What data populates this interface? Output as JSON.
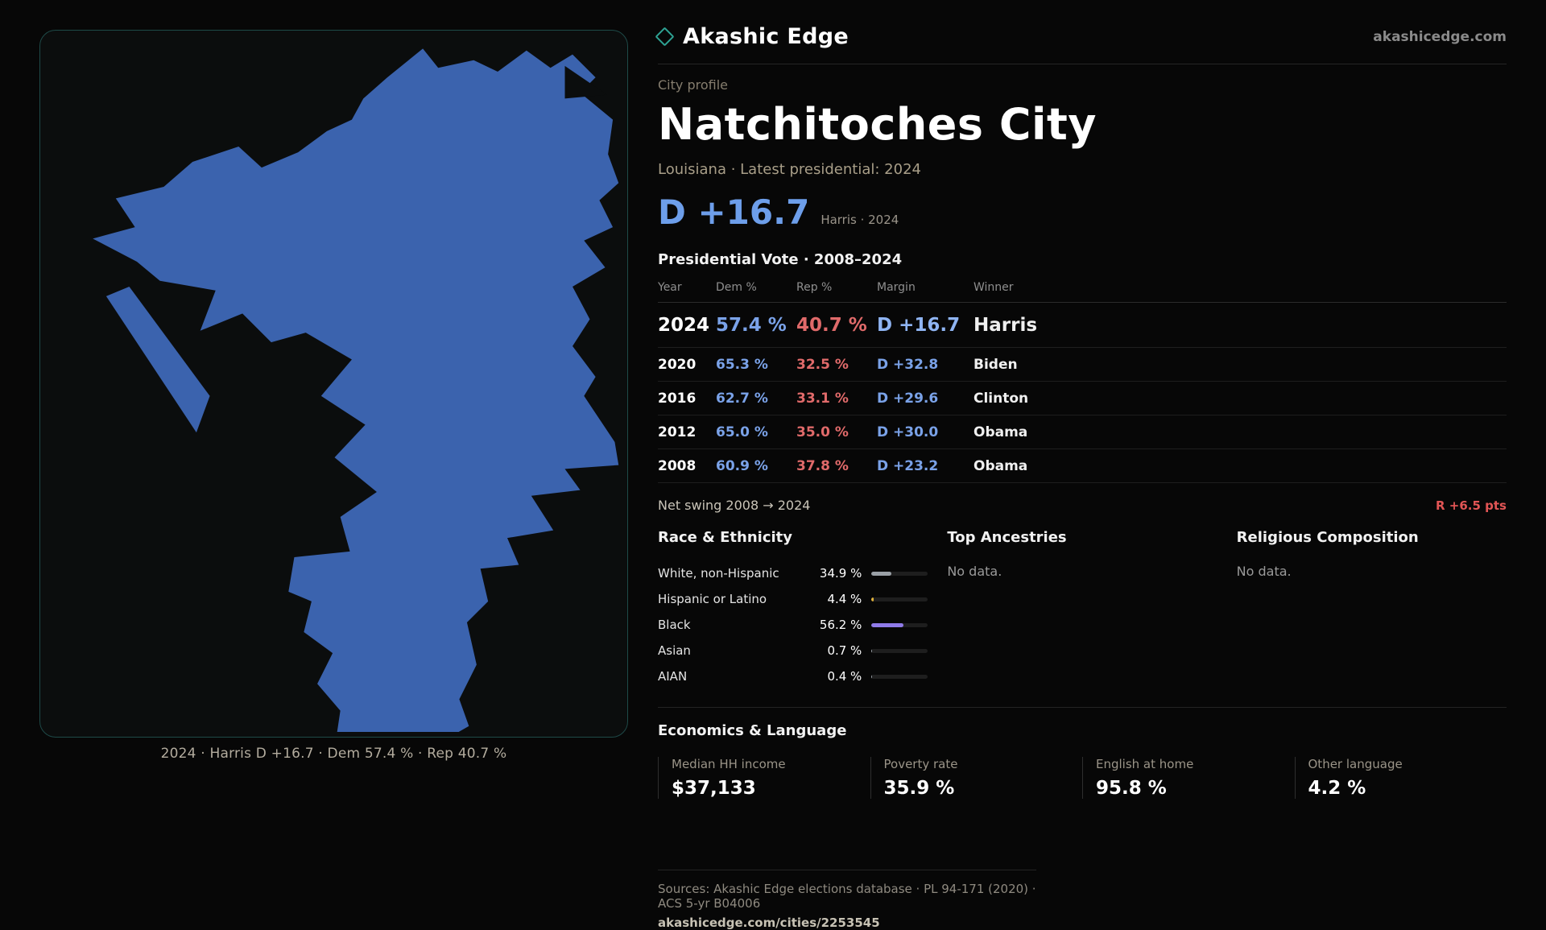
{
  "brand": {
    "name": "Akashic Edge",
    "domain": "akashicedge.com"
  },
  "map": {
    "caption": "2024 · Harris D +16.7 · Dem 57.4 % · Rep 40.7 %",
    "fill": "#3b63ae"
  },
  "profile": {
    "eyebrow": "City profile",
    "title": "Natchitoches City",
    "subtitle": "Louisiana · Latest presidential: 2024",
    "headline_margin": "D +16.7",
    "headline_note": "Harris · 2024"
  },
  "table": {
    "title": "Presidential Vote · 2008–2024",
    "headers": [
      "Year",
      "Dem %",
      "Rep %",
      "Margin",
      "Winner"
    ],
    "rows": [
      {
        "year": "2024",
        "dem": "57.4 %",
        "rep": "40.7 %",
        "margin": "D +16.7",
        "winner": "Harris"
      },
      {
        "year": "2020",
        "dem": "65.3 %",
        "rep": "32.5 %",
        "margin": "D +32.8",
        "winner": "Biden"
      },
      {
        "year": "2016",
        "dem": "62.7 %",
        "rep": "33.1 %",
        "margin": "D +29.6",
        "winner": "Clinton"
      },
      {
        "year": "2012",
        "dem": "65.0 %",
        "rep": "35.0 %",
        "margin": "D +30.0",
        "winner": "Obama"
      },
      {
        "year": "2008",
        "dem": "60.9 %",
        "rep": "37.8 %",
        "margin": "D +23.2",
        "winner": "Obama"
      }
    ],
    "net_swing_label": "Net swing 2008 → 2024",
    "net_swing_value": "R +6.5 pts"
  },
  "demographics": {
    "race_title": "Race & Ethnicity",
    "ancestries_title": "Top Ancestries",
    "ancestries_empty": "No data.",
    "religion_title": "Religious Composition",
    "religion_empty": "No data.",
    "race_items": [
      {
        "label": "White, non-Hispanic",
        "value": "34.9 %",
        "pct": 34.9,
        "color": "#9aa0a6"
      },
      {
        "label": "Hispanic or Latino",
        "value": "4.4 %",
        "pct": 4.4,
        "color": "#e0b23c"
      },
      {
        "label": "Black",
        "value": "56.2 %",
        "pct": 56.2,
        "color": "#8f7ae8"
      },
      {
        "label": "Asian",
        "value": "0.7 %",
        "pct": 0.7,
        "color": "#9aa0a6"
      },
      {
        "label": "AIAN",
        "value": "0.4 %",
        "pct": 0.4,
        "color": "#9aa0a6"
      }
    ]
  },
  "economics": {
    "title": "Economics & Language",
    "stats": [
      {
        "label": "Median HH income",
        "value": "$37,133"
      },
      {
        "label": "Poverty rate",
        "value": "35.9 %"
      },
      {
        "label": "English at home",
        "value": "95.8 %"
      },
      {
        "label": "Other language",
        "value": "4.2 %"
      }
    ]
  },
  "footer": {
    "sources": "Sources: Akashic Edge elections database · PL 94-171 (2020) · ACS 5-yr B04006",
    "link": "akashicedge.com/cities/2253545"
  },
  "colors": {
    "dem": "#7aa2e8",
    "rep": "#e06a6a",
    "accent": "#2ea394",
    "map_fill": "#3b63ae"
  }
}
